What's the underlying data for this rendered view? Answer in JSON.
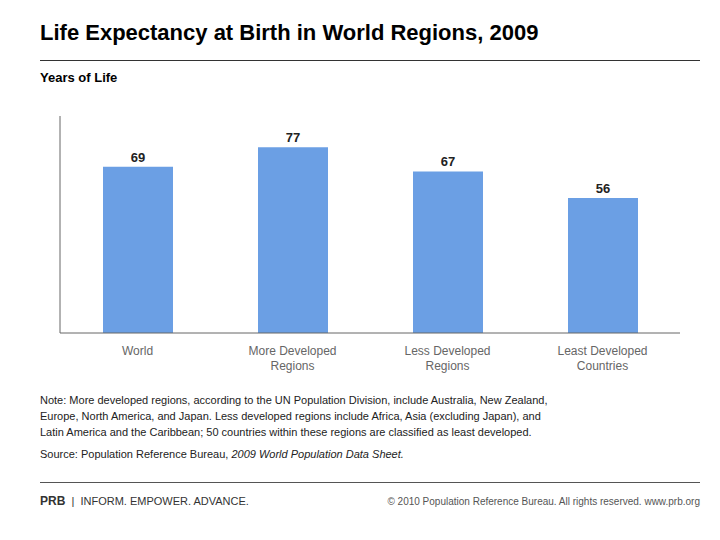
{
  "chart_data": {
    "type": "bar",
    "title": "Life Expectancy at Birth in World Regions, 2009",
    "ylabel": "Years of Life",
    "categories": [
      "World",
      "More Developed\nRegions",
      "Less Developed\nRegions",
      "Least Developed\nCountries"
    ],
    "values": [
      69,
      77,
      67,
      56
    ],
    "color": "#6B9FE4",
    "ylim": [
      0,
      90
    ],
    "grid": false,
    "data_labels": true,
    "tick_labels": "x",
    "annotations": [
      "Note: More developed regions, according to the UN Population Division, include Australia, New Zealand,\nEurope, North America, and Japan. Less developed regions include Africa, Asia (excluding Japan), and\nLatin America and the Caribbean; 50 countries within these regions are classified as least developed.",
      "Source: Population Reference Bureau, ",
      "2009 World Population Data Sheet.",
      "PRB",
      "  |  INFORM. EMPOWER. ADVANCE.",
      "© 2010 Population Reference Bureau. All rights reserved. www.prb.org"
    ]
  }
}
